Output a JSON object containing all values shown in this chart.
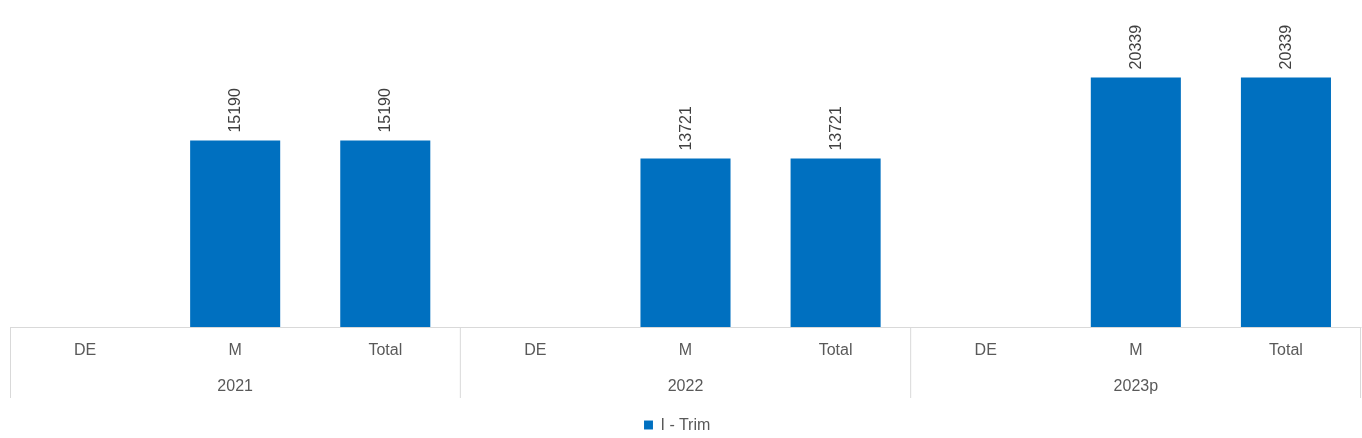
{
  "chart_data": {
    "type": "bar",
    "categories": [
      "DE",
      "M",
      "Total",
      "DE",
      "M",
      "Total",
      "DE",
      "M",
      "Total"
    ],
    "series": [
      {
        "name": "I - Trim",
        "color": "#0070c0",
        "values": [
          null,
          15190,
          15190,
          null,
          13721,
          13721,
          null,
          20339,
          20339
        ]
      }
    ],
    "data_labels": true,
    "legend": "bottom",
    "grid": false,
    "annotations": [
      "2021",
      "2022",
      "2023p"
    ]
  }
}
